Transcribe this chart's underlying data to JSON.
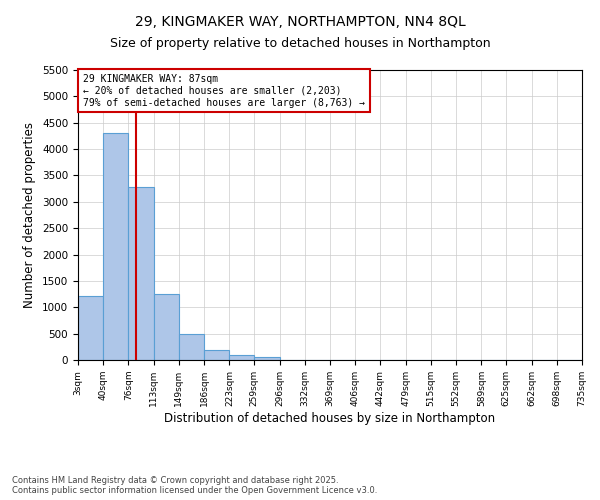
{
  "title_line1": "29, KINGMAKER WAY, NORTHAMPTON, NN4 8QL",
  "title_line2": "Size of property relative to detached houses in Northampton",
  "xlabel": "Distribution of detached houses by size in Northampton",
  "ylabel": "Number of detached properties",
  "annotation_title": "29 KINGMAKER WAY: 87sqm",
  "annotation_line2": "← 20% of detached houses are smaller (2,203)",
  "annotation_line3": "79% of semi-detached houses are larger (8,763) →",
  "property_size": 87,
  "bin_edges": [
    3,
    40,
    76,
    113,
    149,
    186,
    223,
    259,
    296,
    332,
    369,
    406,
    442,
    479,
    515,
    552,
    589,
    625,
    662,
    698,
    735
  ],
  "bar_heights": [
    1220,
    4300,
    3280,
    1260,
    490,
    195,
    95,
    65,
    0,
    0,
    0,
    0,
    0,
    0,
    0,
    0,
    0,
    0,
    0,
    0
  ],
  "bar_color": "#aec6e8",
  "bar_edge_color": "#5a9fd4",
  "vline_color": "#cc0000",
  "annotation_box_color": "#cc0000",
  "grid_color": "#cccccc",
  "background_color": "#ffffff",
  "footer_line1": "Contains HM Land Registry data © Crown copyright and database right 2025.",
  "footer_line2": "Contains public sector information licensed under the Open Government Licence v3.0.",
  "ylim": [
    0,
    5500
  ],
  "yticks": [
    0,
    500,
    1000,
    1500,
    2000,
    2500,
    3000,
    3500,
    4000,
    4500,
    5000,
    5500
  ]
}
